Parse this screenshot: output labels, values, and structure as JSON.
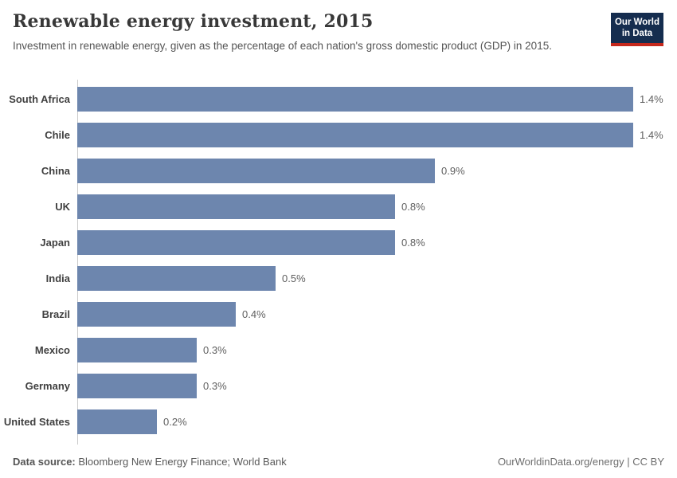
{
  "header": {
    "title": "Renewable energy investment, 2015",
    "subtitle": "Investment in renewable energy, given as the percentage of each nation's gross domestic product (GDP) in 2015.",
    "logo": {
      "line1": "Our World",
      "line2": "in Data",
      "bg_color": "#152d4f",
      "accent_color": "#c5281c"
    }
  },
  "chart_data": {
    "type": "bar",
    "orientation": "horizontal",
    "title": "Renewable energy investment, 2015",
    "categories": [
      "South Africa",
      "Chile",
      "China",
      "UK",
      "Japan",
      "India",
      "Brazil",
      "Mexico",
      "Germany",
      "United States"
    ],
    "values": [
      1.4,
      1.4,
      0.9,
      0.8,
      0.8,
      0.5,
      0.4,
      0.3,
      0.3,
      0.2
    ],
    "value_labels": [
      "1.4%",
      "1.4%",
      "0.9%",
      "0.8%",
      "0.8%",
      "0.5%",
      "0.4%",
      "0.3%",
      "0.3%",
      "0.2%"
    ],
    "bar_color": "#6d86ae",
    "xlim": [
      0,
      1.4
    ],
    "grid": false,
    "legend": false
  },
  "footer": {
    "source_label": "Data source:",
    "source_text": " Bloomberg New Energy Finance; World Bank",
    "credit": "OurWorldinData.org/energy | CC BY"
  }
}
